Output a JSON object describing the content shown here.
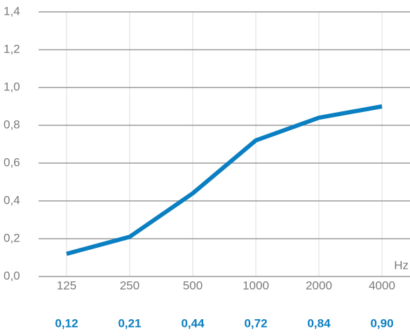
{
  "chart_data": {
    "type": "line",
    "categories": [
      "125",
      "250",
      "500",
      "1000",
      "2000",
      "4000"
    ],
    "series": [
      {
        "color": "#0a7fc2",
        "values": [
          0.12,
          0.21,
          0.44,
          0.72,
          0.84,
          0.9
        ],
        "value_labels": [
          "0,12",
          "0,21",
          "0,44",
          "0,72",
          "0,84",
          "0,90"
        ]
      }
    ],
    "x_unit": "Hz",
    "ylim": [
      0,
      1.4
    ],
    "yticks": [
      {
        "value": 0,
        "label": "0,0"
      },
      {
        "value": 0.2,
        "label": "0,2"
      },
      {
        "value": 0.4,
        "label": "0,4"
      },
      {
        "value": 0.6,
        "label": "0,6"
      },
      {
        "value": 0.8,
        "label": "0,8"
      },
      {
        "value": 1.0,
        "label": "1,0"
      },
      {
        "value": 1.2,
        "label": "1,2"
      },
      {
        "value": 1.4,
        "label": "1,4"
      }
    ],
    "grid": true
  }
}
